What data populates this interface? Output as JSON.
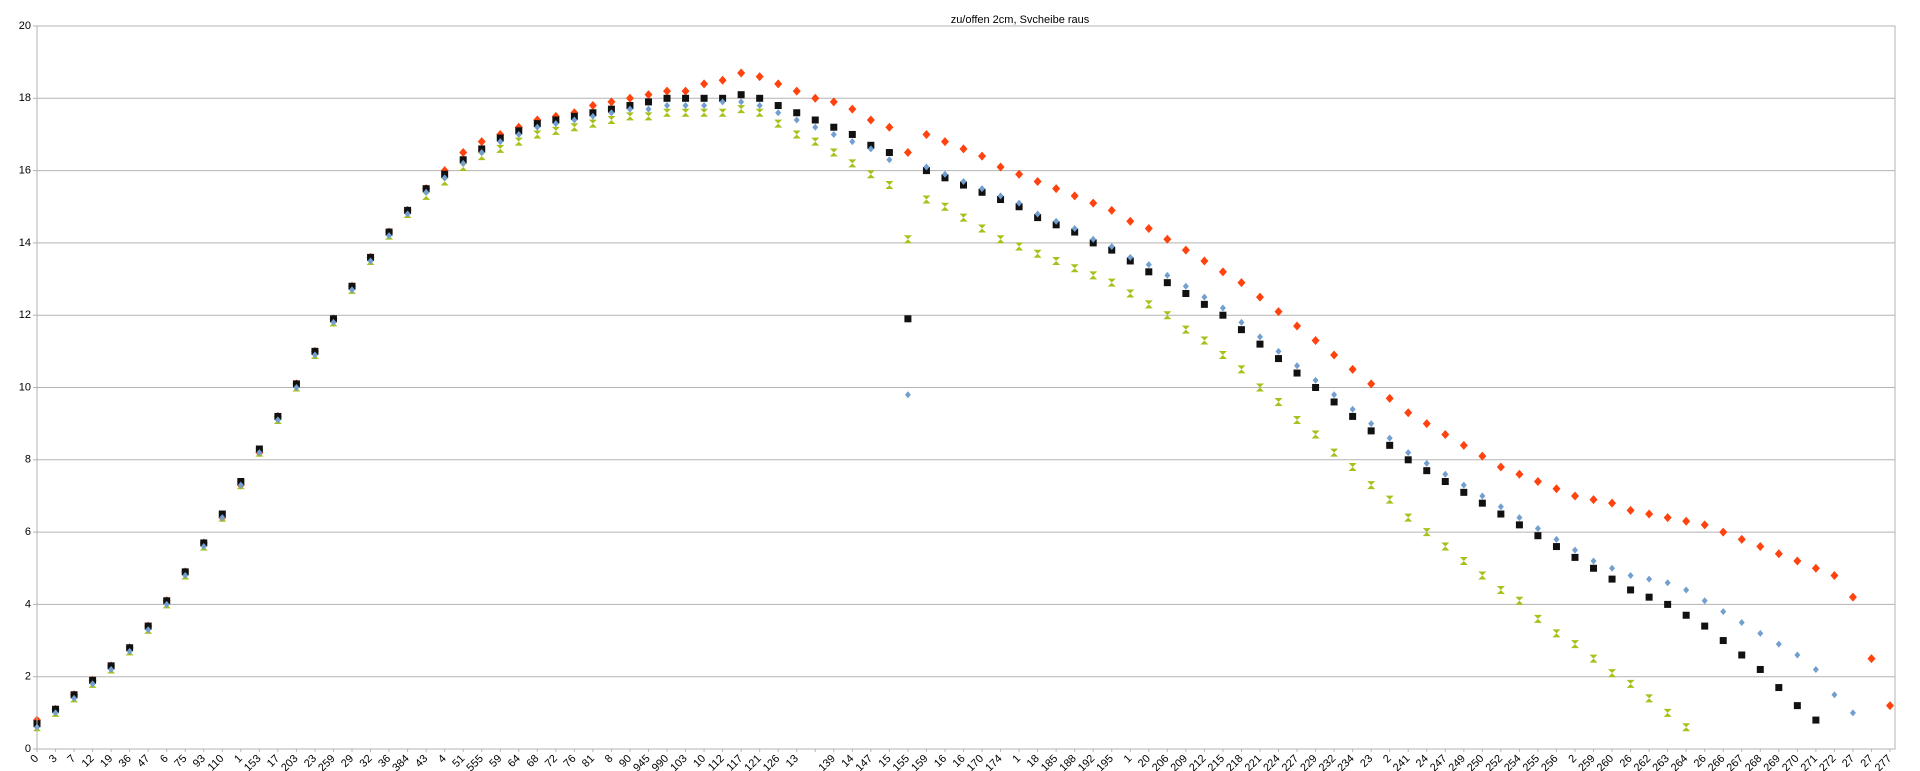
{
  "chart_data": {
    "type": "scatter",
    "title": "zu/offen 2cm, Svcheibe raus",
    "categories": [
      "0",
      "3",
      "7",
      "12",
      "19",
      "36",
      "47",
      "6",
      "75",
      "93",
      "110",
      "1",
      "153",
      "17",
      "203",
      "23",
      "259",
      "29",
      "32",
      "36",
      "384",
      "43",
      "4",
      "51",
      "555",
      "59",
      "64",
      "68",
      "72",
      "76",
      "81",
      "8",
      "90",
      "945",
      "990",
      "103",
      "10",
      "112",
      "117",
      "121",
      "126",
      "13",
      null,
      "139",
      "14",
      "147",
      "15",
      "155",
      "159",
      "16",
      "16",
      "170",
      "174",
      "1",
      "18",
      "185",
      "188",
      "192",
      "195",
      "1",
      "20",
      "206",
      "209",
      "212",
      "215",
      "218",
      "221",
      "224",
      "227",
      "229",
      "232",
      "234",
      "23",
      "2",
      "241",
      "24",
      "247",
      "249",
      "250",
      "252",
      "254",
      "255",
      "256",
      "2",
      "259",
      "260",
      "26",
      "262",
      "263",
      "264",
      "26",
      "266",
      "267",
      "268",
      "269",
      "270",
      "271",
      "272",
      "27",
      "27",
      "277"
    ],
    "series": [
      {
        "color": "#ff420e",
        "marker": "diamond",
        "values": [
          0.8,
          1.1,
          1.5,
          1.9,
          2.3,
          2.8,
          3.4,
          4.1,
          4.9,
          5.7,
          6.4,
          7.3,
          8.2,
          9.2,
          10.1,
          11.0,
          11.9,
          12.8,
          13.6,
          14.3,
          14.9,
          15.5,
          16.0,
          16.5,
          16.8,
          17.0,
          17.2,
          17.4,
          17.5,
          17.6,
          17.8,
          17.9,
          18.0,
          18.1,
          18.2,
          18.2,
          18.4,
          18.5,
          18.7,
          18.6,
          18.4,
          18.2,
          18.0,
          17.9,
          17.7,
          17.4,
          17.2,
          16.5,
          17.0,
          16.8,
          16.6,
          16.4,
          16.1,
          15.9,
          15.7,
          15.5,
          15.3,
          15.1,
          14.9,
          14.6,
          14.4,
          14.1,
          13.8,
          13.5,
          13.2,
          12.9,
          12.5,
          12.1,
          11.7,
          11.3,
          10.9,
          10.5,
          10.1,
          9.7,
          9.3,
          9.0,
          8.7,
          8.4,
          8.1,
          7.8,
          7.6,
          7.4,
          7.2,
          7.0,
          6.9,
          6.8,
          6.6,
          6.5,
          6.4,
          6.3,
          6.2,
          6.0,
          5.8,
          5.6,
          5.4,
          5.2,
          5.0,
          4.8,
          4.2,
          2.5,
          1.2
        ]
      },
      {
        "color": "#a5c11a",
        "marker": "hourglass",
        "values": [
          0.6,
          1.0,
          1.4,
          1.8,
          2.2,
          2.7,
          3.3,
          4.0,
          4.8,
          5.6,
          6.4,
          7.3,
          8.2,
          9.1,
          10.0,
          10.9,
          11.8,
          12.7,
          13.5,
          14.2,
          14.8,
          15.3,
          15.7,
          16.1,
          16.4,
          16.6,
          16.8,
          17.0,
          17.1,
          17.2,
          17.3,
          17.4,
          17.5,
          17.5,
          17.6,
          17.6,
          17.6,
          17.6,
          17.7,
          17.6,
          17.3,
          17.0,
          16.8,
          16.5,
          16.2,
          15.9,
          15.6,
          14.1,
          15.2,
          15.0,
          14.7,
          14.4,
          14.1,
          13.9,
          13.7,
          13.5,
          13.3,
          13.1,
          12.9,
          12.6,
          12.3,
          12.0,
          11.6,
          11.3,
          10.9,
          10.5,
          10.0,
          9.6,
          9.1,
          8.7,
          8.2,
          7.8,
          7.3,
          6.9,
          6.4,
          6.0,
          5.6,
          5.2,
          4.8,
          4.4,
          4.1,
          3.6,
          3.2,
          2.9,
          2.5,
          2.1,
          1.8,
          1.4,
          1.0,
          0.6,
          null,
          null,
          null,
          null,
          null,
          null,
          null,
          null,
          null,
          null,
          null
        ]
      },
      {
        "color": "#111111",
        "marker": "square",
        "values": [
          0.7,
          1.1,
          1.5,
          1.9,
          2.3,
          2.8,
          3.4,
          4.1,
          4.9,
          5.7,
          6.5,
          7.4,
          8.3,
          9.2,
          10.1,
          11.0,
          11.9,
          12.8,
          13.6,
          14.3,
          14.9,
          15.5,
          15.9,
          16.3,
          16.6,
          16.9,
          17.1,
          17.3,
          17.4,
          17.5,
          17.6,
          17.7,
          17.8,
          17.9,
          18.0,
          18.0,
          18.0,
          18.0,
          18.1,
          18.0,
          17.8,
          17.6,
          17.4,
          17.2,
          17.0,
          16.7,
          16.5,
          11.9,
          16.0,
          15.8,
          15.6,
          15.4,
          15.2,
          15.0,
          14.7,
          14.5,
          14.3,
          14.0,
          13.8,
          13.5,
          13.2,
          12.9,
          12.6,
          12.3,
          12.0,
          11.6,
          11.2,
          10.8,
          10.4,
          10.0,
          9.6,
          9.2,
          8.8,
          8.4,
          8.0,
          7.7,
          7.4,
          7.1,
          6.8,
          6.5,
          6.2,
          5.9,
          5.6,
          5.3,
          5.0,
          4.7,
          4.4,
          4.2,
          4.0,
          3.7,
          3.4,
          3.0,
          2.6,
          2.2,
          1.7,
          1.2,
          0.8,
          null,
          null,
          null,
          null
        ]
      },
      {
        "color": "#729fcf",
        "marker": "small-diamond",
        "values": [
          0.6,
          1.0,
          1.4,
          1.8,
          2.2,
          2.7,
          3.3,
          4.0,
          4.8,
          5.6,
          6.4,
          7.3,
          8.2,
          9.1,
          10.0,
          10.9,
          11.8,
          12.7,
          13.5,
          14.2,
          14.8,
          15.4,
          15.8,
          16.2,
          16.5,
          16.8,
          17.0,
          17.2,
          17.3,
          17.4,
          17.5,
          17.6,
          17.7,
          17.7,
          17.8,
          17.8,
          17.8,
          17.9,
          17.9,
          17.8,
          17.6,
          17.4,
          17.2,
          17.0,
          16.8,
          16.6,
          16.3,
          9.8,
          16.1,
          15.9,
          15.7,
          15.5,
          15.3,
          15.1,
          14.8,
          14.6,
          14.4,
          14.1,
          13.9,
          13.6,
          13.4,
          13.1,
          12.8,
          12.5,
          12.2,
          11.8,
          11.4,
          11.0,
          10.6,
          10.2,
          9.8,
          9.4,
          9.0,
          8.6,
          8.2,
          7.9,
          7.6,
          7.3,
          7.0,
          6.7,
          6.4,
          6.1,
          5.8,
          5.5,
          5.2,
          5.0,
          4.8,
          4.7,
          4.6,
          4.4,
          4.1,
          3.8,
          3.5,
          3.2,
          2.9,
          2.6,
          2.2,
          1.5,
          1.0,
          null,
          null
        ]
      }
    ],
    "ylim": [
      0,
      20
    ],
    "yticks": [
      0,
      2,
      4,
      6,
      8,
      10,
      12,
      14,
      16,
      18,
      20
    ],
    "grid": true
  }
}
